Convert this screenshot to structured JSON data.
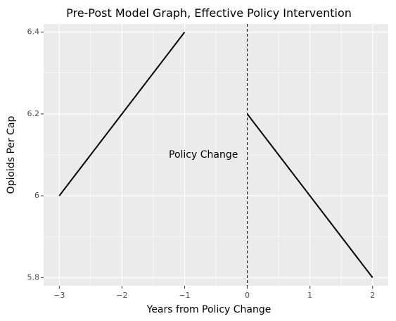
{
  "chart_data": {
    "type": "line",
    "title": "Pre-Post Model Graph, Effective Policy Intervention",
    "xlabel": "Years from Policy Change",
    "ylabel": "Opioids Per Cap",
    "xlim": [
      -3.25,
      2.25
    ],
    "ylim": [
      5.78,
      6.42
    ],
    "x_ticks": [
      -3,
      -2,
      -1,
      0,
      1,
      2
    ],
    "x_tick_labels": [
      "−3",
      "−2",
      "−1",
      "0",
      "1",
      "2"
    ],
    "y_ticks": [
      5.8,
      6.0,
      6.2,
      6.4
    ],
    "y_tick_labels": [
      "5.8",
      "6",
      "6.2",
      "6.4"
    ],
    "grid": true,
    "series": [
      {
        "segment": "pre",
        "x": [
          -3,
          -1
        ],
        "y": [
          6.0,
          6.4
        ]
      },
      {
        "segment": "post",
        "x": [
          0,
          2
        ],
        "y": [
          6.2,
          5.8
        ]
      }
    ],
    "vline": {
      "x": 0,
      "style": "dashed"
    },
    "annotation": {
      "text": "Policy Change",
      "x": -0.7,
      "y": 6.1
    },
    "colors": {
      "panel": "#ebebeb",
      "grid": "#ffffff",
      "line": "#000000"
    }
  }
}
